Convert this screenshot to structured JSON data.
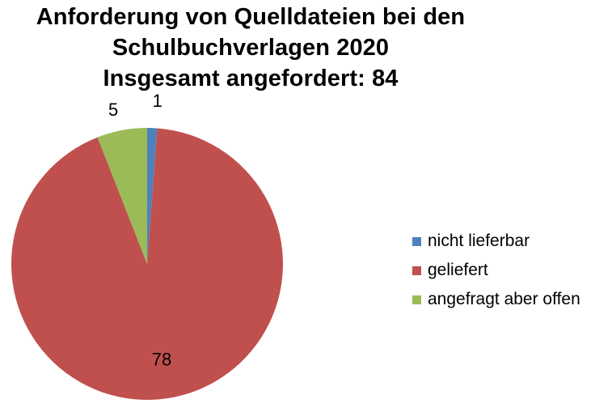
{
  "chart_data": {
    "type": "pie",
    "title_lines": [
      "Anforderung von Quelldateien bei den",
      "Schulbuchverlagen 2020",
      "Insgesamt angefordert: 84"
    ],
    "slices": [
      {
        "label": "nicht lieferbar",
        "value": 1,
        "color": "#4f81bd"
      },
      {
        "label": "geliefert",
        "value": 78,
        "color": "#c0504d"
      },
      {
        "label": "angefragt aber offen",
        "value": 5,
        "color": "#9bbb59"
      }
    ],
    "legend_position": "right"
  }
}
